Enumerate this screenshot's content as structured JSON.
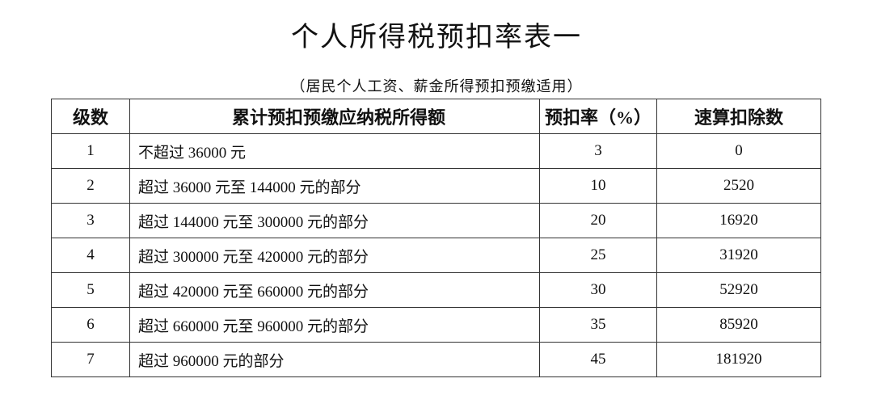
{
  "title": "个人所得税预扣率表一",
  "subtitle": "（居民个人工资、薪金所得预扣预缴适用）",
  "table": {
    "headers": [
      "级数",
      "累计预扣预缴应纳税所得额",
      "预扣率（%）",
      "速算扣除数"
    ],
    "rows": [
      [
        "1",
        "不超过 36000 元",
        "3",
        "0"
      ],
      [
        "2",
        "超过 36000 元至 144000 元的部分",
        "10",
        "2520"
      ],
      [
        "3",
        "超过 144000 元至 300000 元的部分",
        "20",
        "16920"
      ],
      [
        "4",
        "超过 300000 元至 420000 元的部分",
        "25",
        "31920"
      ],
      [
        "5",
        "超过 420000 元至 660000 元的部分",
        "30",
        "52920"
      ],
      [
        "6",
        "超过 660000 元至 960000 元的部分",
        "35",
        "85920"
      ],
      [
        "7",
        "超过 960000 元的部分",
        "45",
        "181920"
      ]
    ]
  }
}
